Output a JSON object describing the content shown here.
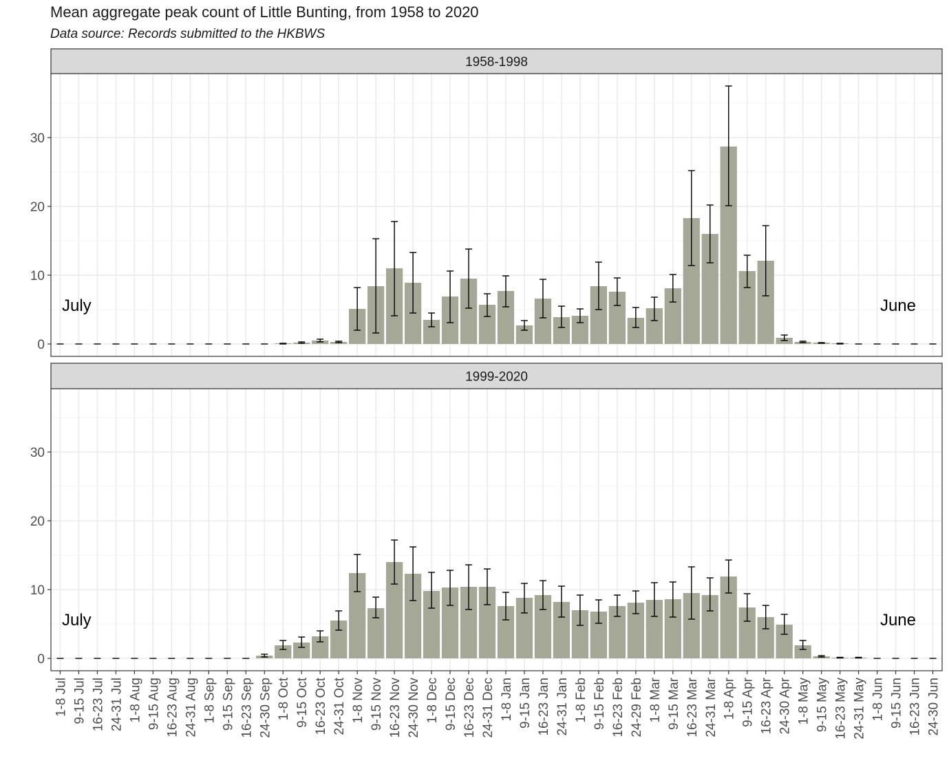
{
  "title": "Mean aggregate peak count of Little Bunting, from 1958 to 2020",
  "subtitle": "Data source: Records submitted to the HKBWS",
  "colors": {
    "bar": "#a6a897",
    "strip": "#d9d9d9",
    "grid": "#ebebeb",
    "errorbar": "#000000"
  },
  "chart_data": {
    "type": "bar",
    "categories": [
      "1-8 Jul",
      "9-15 Jul",
      "16-23 Jul",
      "24-31 Jul",
      "1-8 Aug",
      "9-15 Aug",
      "16-23 Aug",
      "24-31 Aug",
      "1-8 Sep",
      "9-15 Sep",
      "16-23 Sep",
      "24-30 Sep",
      "1-8 Oct",
      "9-15 Oct",
      "16-23 Oct",
      "24-31 Oct",
      "1-8 Nov",
      "9-15 Nov",
      "16-23 Nov",
      "24-30 Nov",
      "1-8 Dec",
      "9-15 Dec",
      "16-23 Dec",
      "24-31 Dec",
      "1-8 Jan",
      "9-15 Jan",
      "16-23 Jan",
      "24-31 Jan",
      "1-8 Feb",
      "9-15 Feb",
      "16-23 Feb",
      "24-29 Feb",
      "1-8 Mar",
      "9-15 Mar",
      "16-23 Mar",
      "24-31 Mar",
      "1-8 Apr",
      "9-15 Apr",
      "16-23 Apr",
      "24-30 Apr",
      "1-8 May",
      "9-15 May",
      "16-23 May",
      "24-31 May",
      "1-8 Jun",
      "9-15 Jun",
      "16-23 Jun",
      "24-30 Jun"
    ],
    "ylim": [
      0,
      39
    ],
    "yticks": [
      0,
      10,
      20,
      30
    ],
    "grid": true,
    "panels": [
      {
        "name": "1958-1998",
        "left_annotation": "July",
        "right_annotation": "June",
        "values": [
          0,
          0,
          0,
          0,
          0,
          0,
          0,
          0,
          0,
          0,
          0,
          0,
          0.1,
          0.2,
          0.5,
          0.3,
          5.1,
          8.4,
          11.0,
          8.9,
          3.5,
          6.9,
          9.5,
          5.7,
          7.7,
          2.7,
          6.6,
          3.9,
          4.1,
          8.4,
          7.6,
          3.8,
          5.2,
          8.1,
          18.3,
          16.0,
          28.7,
          10.6,
          12.1,
          0.9,
          0.3,
          0.2,
          0.1,
          0,
          0,
          0,
          0,
          0
        ],
        "errors": [
          [
            0,
            0
          ],
          [
            0,
            0
          ],
          [
            0,
            0
          ],
          [
            0,
            0
          ],
          [
            0,
            0
          ],
          [
            0,
            0
          ],
          [
            0,
            0
          ],
          [
            0,
            0
          ],
          [
            0,
            0
          ],
          [
            0,
            0
          ],
          [
            0,
            0
          ],
          [
            0,
            0
          ],
          [
            0,
            0.1
          ],
          [
            0.1,
            0.3
          ],
          [
            0.3,
            0.7
          ],
          [
            0.2,
            0.4
          ],
          [
            2.0,
            8.2
          ],
          [
            1.6,
            15.3
          ],
          [
            4.1,
            17.8
          ],
          [
            4.5,
            13.3
          ],
          [
            2.5,
            4.5
          ],
          [
            3.1,
            10.6
          ],
          [
            5.2,
            13.8
          ],
          [
            4.0,
            7.3
          ],
          [
            5.4,
            9.9
          ],
          [
            2.0,
            3.4
          ],
          [
            3.8,
            9.4
          ],
          [
            2.4,
            5.5
          ],
          [
            3.1,
            5.1
          ],
          [
            5.0,
            11.9
          ],
          [
            5.6,
            9.6
          ],
          [
            2.4,
            5.3
          ],
          [
            3.4,
            6.8
          ],
          [
            6.1,
            10.1
          ],
          [
            11.4,
            25.2
          ],
          [
            11.8,
            20.2
          ],
          [
            20.1,
            37.5
          ],
          [
            8.2,
            12.9
          ],
          [
            7.0,
            17.2
          ],
          [
            0.5,
            1.3
          ],
          [
            0.2,
            0.4
          ],
          [
            0.1,
            0.2
          ],
          [
            0,
            0.1
          ],
          [
            0,
            0
          ],
          [
            0,
            0
          ],
          [
            0,
            0
          ],
          [
            0,
            0
          ],
          [
            0,
            0
          ]
        ]
      },
      {
        "name": "1999-2020",
        "left_annotation": "July",
        "right_annotation": "June",
        "values": [
          0,
          0,
          0,
          0,
          0,
          0,
          0,
          0,
          0,
          0,
          0,
          0.4,
          1.9,
          2.3,
          3.2,
          5.5,
          12.4,
          7.3,
          14.0,
          12.3,
          9.8,
          10.3,
          10.4,
          10.4,
          7.6,
          8.8,
          9.2,
          8.2,
          7.0,
          6.8,
          7.6,
          8.1,
          8.5,
          8.6,
          9.5,
          9.2,
          11.9,
          7.4,
          6.0,
          4.9,
          1.9,
          0.3,
          0.1,
          0.1,
          0,
          0,
          0,
          0
        ],
        "errors": [
          [
            0,
            0
          ],
          [
            0,
            0
          ],
          [
            0,
            0
          ],
          [
            0,
            0
          ],
          [
            0,
            0
          ],
          [
            0,
            0
          ],
          [
            0,
            0
          ],
          [
            0,
            0
          ],
          [
            0,
            0
          ],
          [
            0,
            0
          ],
          [
            0,
            0
          ],
          [
            0.2,
            0.6
          ],
          [
            1.3,
            2.6
          ],
          [
            1.6,
            3.1
          ],
          [
            2.4,
            4.0
          ],
          [
            4.1,
            6.9
          ],
          [
            9.7,
            15.1
          ],
          [
            5.9,
            8.9
          ],
          [
            10.8,
            17.2
          ],
          [
            8.4,
            16.2
          ],
          [
            7.3,
            12.5
          ],
          [
            7.7,
            12.8
          ],
          [
            7.1,
            13.6
          ],
          [
            7.8,
            13.0
          ],
          [
            5.6,
            9.6
          ],
          [
            6.6,
            10.9
          ],
          [
            7.1,
            11.3
          ],
          [
            6.0,
            10.5
          ],
          [
            4.8,
            9.2
          ],
          [
            5.1,
            8.5
          ],
          [
            6.1,
            9.2
          ],
          [
            6.5,
            9.8
          ],
          [
            6.1,
            11.0
          ],
          [
            6.0,
            11.1
          ],
          [
            5.7,
            13.3
          ],
          [
            6.9,
            11.7
          ],
          [
            9.5,
            14.3
          ],
          [
            5.4,
            9.4
          ],
          [
            4.3,
            7.7
          ],
          [
            3.5,
            6.4
          ],
          [
            1.3,
            2.6
          ],
          [
            0.2,
            0.4
          ],
          [
            0.05,
            0.15
          ],
          [
            0.05,
            0.15
          ],
          [
            0,
            0
          ],
          [
            0,
            0
          ],
          [
            0,
            0
          ],
          [
            0,
            0
          ]
        ]
      }
    ]
  }
}
